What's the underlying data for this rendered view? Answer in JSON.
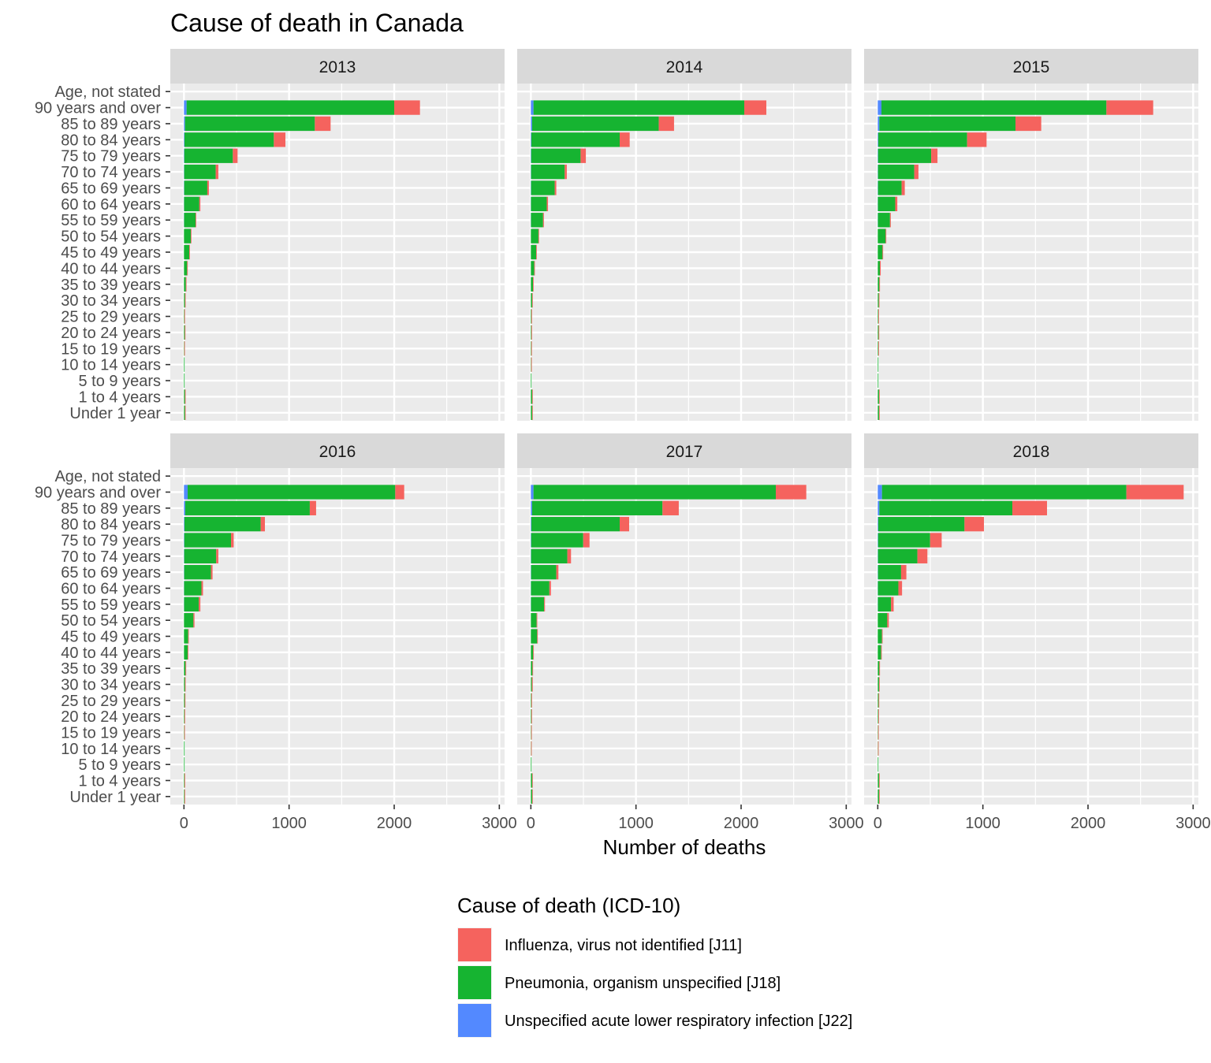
{
  "chart_data": {
    "type": "bar",
    "orientation": "horizontal",
    "stacked": true,
    "title": "Cause of death in Canada",
    "xlabel": "Number of deaths",
    "ylabel": "",
    "xlim": [
      -130,
      3050
    ],
    "xticks": [
      0,
      1000,
      2000,
      3000
    ],
    "tick_labels": [
      "0",
      "1000",
      "2000",
      "3000"
    ],
    "grid": true,
    "legend_position": "bottom",
    "legend_title": "Cause of death (ICD-10)",
    "categories": [
      "Age, not stated",
      "90 years and over",
      "85 to 89 years",
      "80 to 84 years",
      "75 to 79 years",
      "70 to 74 years",
      "65 to 69 years",
      "60 to 64 years",
      "55 to 59 years",
      "50 to 54 years",
      "45 to 49 years",
      "40 to 44 years",
      "35 to 39 years",
      "30 to 34 years",
      "25 to 29 years",
      "20 to 24 years",
      "15 to 19 years",
      "10 to 14 years",
      "5 to 9 years",
      "1 to 4 years",
      "Under 1 year"
    ],
    "series_meta": [
      {
        "key": "j22",
        "name": "Unspecified acute lower respiratory infection [J22]",
        "color": "#5389ff"
      },
      {
        "key": "j18",
        "name": "Pneumonia, organism unspecified [J18]",
        "color": "#16b431"
      },
      {
        "key": "j11",
        "name": "Influenza, virus not identified [J11]",
        "color": "#f5635e"
      }
    ],
    "legend_order": [
      "j11",
      "j18",
      "j22"
    ],
    "panels": [
      {
        "label": "2013",
        "j22": [
          0,
          25,
          10,
          5,
          3,
          2,
          2,
          1,
          1,
          0,
          0,
          0,
          0,
          0,
          0,
          0,
          0,
          0,
          0,
          0,
          0
        ],
        "j18": [
          0,
          1975,
          1235,
          850,
          462,
          300,
          220,
          145,
          110,
          65,
          50,
          30,
          18,
          10,
          4,
          8,
          3,
          2,
          2,
          10,
          10
        ],
        "j11": [
          0,
          245,
          150,
          110,
          45,
          25,
          15,
          10,
          6,
          5,
          3,
          3,
          2,
          2,
          2,
          2,
          1,
          0,
          0,
          2,
          2
        ]
      },
      {
        "label": "2014",
        "j22": [
          0,
          25,
          12,
          5,
          3,
          2,
          2,
          1,
          1,
          0,
          0,
          0,
          0,
          0,
          0,
          0,
          0,
          0,
          0,
          0,
          0
        ],
        "j18": [
          0,
          2005,
          1205,
          840,
          470,
          320,
          225,
          150,
          115,
          72,
          50,
          32,
          20,
          12,
          5,
          5,
          4,
          3,
          2,
          12,
          12
        ],
        "j11": [
          0,
          210,
          145,
          95,
          50,
          20,
          15,
          12,
          8,
          5,
          4,
          3,
          3,
          3,
          5,
          2,
          1,
          1,
          0,
          2,
          1
        ]
      },
      {
        "label": "2015",
        "j22": [
          0,
          35,
          15,
          5,
          3,
          2,
          2,
          1,
          1,
          0,
          0,
          0,
          0,
          0,
          0,
          0,
          0,
          0,
          0,
          0,
          0
        ],
        "j18": [
          0,
          2140,
          1295,
          845,
          505,
          345,
          225,
          165,
          115,
          75,
          45,
          20,
          15,
          10,
          5,
          8,
          5,
          3,
          2,
          12,
          12
        ],
        "j11": [
          0,
          445,
          245,
          185,
          60,
          40,
          30,
          20,
          8,
          6,
          3,
          8,
          5,
          3,
          2,
          2,
          1,
          0,
          0,
          2,
          2
        ]
      },
      {
        "label": "2016",
        "j22": [
          0,
          35,
          12,
          5,
          3,
          2,
          2,
          1,
          1,
          0,
          0,
          0,
          0,
          0,
          0,
          0,
          0,
          0,
          0,
          0,
          0
        ],
        "j18": [
          0,
          1975,
          1185,
          725,
          445,
          305,
          255,
          165,
          140,
          90,
          40,
          35,
          15,
          10,
          8,
          5,
          3,
          2,
          2,
          5,
          5
        ],
        "j11": [
          0,
          85,
          60,
          40,
          25,
          20,
          15,
          15,
          15,
          10,
          5,
          5,
          3,
          3,
          2,
          2,
          2,
          0,
          0,
          5,
          3
        ]
      },
      {
        "label": "2017",
        "j22": [
          0,
          25,
          12,
          5,
          3,
          2,
          2,
          1,
          1,
          0,
          0,
          0,
          0,
          0,
          0,
          0,
          0,
          0,
          0,
          0,
          0
        ],
        "j18": [
          0,
          2305,
          1240,
          840,
          495,
          345,
          240,
          175,
          125,
          55,
          60,
          22,
          15,
          10,
          5,
          5,
          3,
          2,
          2,
          12,
          12
        ],
        "j11": [
          0,
          290,
          155,
          90,
          60,
          35,
          20,
          15,
          8,
          5,
          3,
          3,
          3,
          8,
          2,
          2,
          1,
          1,
          0,
          2,
          2
        ]
      },
      {
        "label": "2018",
        "j22": [
          0,
          40,
          15,
          5,
          3,
          2,
          2,
          1,
          1,
          0,
          0,
          0,
          0,
          0,
          0,
          0,
          0,
          0,
          0,
          0,
          0
        ],
        "j18": [
          0,
          2325,
          1265,
          820,
          495,
          375,
          220,
          195,
          125,
          90,
          40,
          32,
          15,
          12,
          8,
          5,
          3,
          2,
          2,
          12,
          12
        ],
        "j11": [
          0,
          545,
          330,
          185,
          110,
          95,
          50,
          35,
          25,
          15,
          5,
          5,
          5,
          3,
          3,
          3,
          2,
          3,
          0,
          2,
          2
        ]
      }
    ]
  }
}
